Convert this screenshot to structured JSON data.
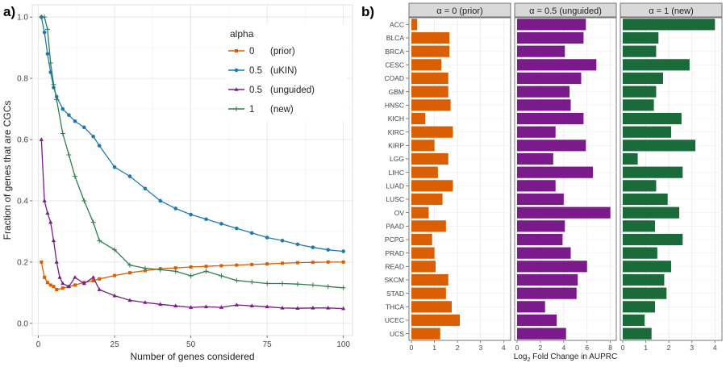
{
  "panels": {
    "a_label": "a)",
    "b_label": "b)"
  },
  "chart_data": [
    {
      "type": "line",
      "panel": "a",
      "xlabel": "Number of genes considered",
      "ylabel": "Fraction of genes that are CGCs",
      "xlim": [
        0,
        100
      ],
      "ylim": [
        0,
        1.0
      ],
      "xticks": [
        0,
        25,
        50,
        75,
        100
      ],
      "yticks": [
        0.0,
        0.2,
        0.4,
        0.6,
        0.8,
        1.0
      ],
      "yticklabels": [
        "0.0",
        "0.2",
        "0.4",
        "0.6",
        "0.8",
        "1.0"
      ],
      "grid": true,
      "legend_title": "alpha",
      "legend_position": "top-right",
      "series": [
        {
          "name": "0",
          "label": "(prior)",
          "color": "#D95F02",
          "marker": "square",
          "x": [
            1,
            2,
            3,
            4,
            5,
            6,
            8,
            10,
            12,
            15,
            18,
            20,
            25,
            30,
            35,
            40,
            45,
            50,
            55,
            60,
            65,
            70,
            75,
            80,
            85,
            90,
            95,
            100
          ],
          "values": [
            0.2,
            0.15,
            0.133,
            0.125,
            0.12,
            0.11,
            0.115,
            0.12,
            0.125,
            0.133,
            0.139,
            0.145,
            0.156,
            0.165,
            0.172,
            0.178,
            0.181,
            0.184,
            0.186,
            0.188,
            0.19,
            0.192,
            0.194,
            0.196,
            0.198,
            0.199,
            0.2,
            0.2
          ]
        },
        {
          "name": "0.5",
          "label": "(uKIN)",
          "color": "#1F78B4",
          "marker": "circle",
          "x": [
            1,
            2,
            3,
            4,
            5,
            6,
            8,
            10,
            12,
            15,
            18,
            20,
            25,
            30,
            35,
            40,
            45,
            50,
            55,
            60,
            65,
            70,
            75,
            80,
            85,
            90,
            95,
            100
          ],
          "values": [
            1.0,
            0.95,
            0.88,
            0.82,
            0.77,
            0.74,
            0.7,
            0.68,
            0.66,
            0.64,
            0.61,
            0.58,
            0.51,
            0.48,
            0.44,
            0.4,
            0.375,
            0.355,
            0.34,
            0.325,
            0.31,
            0.295,
            0.28,
            0.27,
            0.258,
            0.248,
            0.24,
            0.235
          ]
        },
        {
          "name": "0.5",
          "label": "(unguided)",
          "color": "#7B1A8A",
          "marker": "triangle",
          "x": [
            1,
            2,
            3,
            4,
            5,
            6,
            7,
            8,
            10,
            12,
            15,
            18,
            20,
            25,
            30,
            35,
            40,
            45,
            50,
            55,
            60,
            65,
            70,
            75,
            80,
            85,
            90,
            95,
            100
          ],
          "values": [
            0.6,
            0.4,
            0.36,
            0.33,
            0.27,
            0.2,
            0.15,
            0.13,
            0.12,
            0.15,
            0.13,
            0.15,
            0.11,
            0.09,
            0.075,
            0.068,
            0.062,
            0.057,
            0.052,
            0.054,
            0.052,
            0.06,
            0.057,
            0.054,
            0.05,
            0.049,
            0.05,
            0.05,
            0.048
          ]
        },
        {
          "name": "1",
          "label": "(new)",
          "color": "#2E7D4F",
          "marker": "plus",
          "x": [
            1,
            2,
            3,
            4,
            5,
            6,
            8,
            10,
            12,
            15,
            18,
            20,
            25,
            30,
            35,
            40,
            45,
            50,
            55,
            60,
            65,
            70,
            75,
            80,
            85,
            90,
            95,
            100
          ],
          "values": [
            1.0,
            1.0,
            0.96,
            0.85,
            0.78,
            0.73,
            0.62,
            0.55,
            0.48,
            0.4,
            0.33,
            0.27,
            0.24,
            0.19,
            0.18,
            0.175,
            0.17,
            0.155,
            0.17,
            0.155,
            0.14,
            0.135,
            0.13,
            0.13,
            0.128,
            0.125,
            0.12,
            0.116
          ]
        }
      ]
    },
    {
      "type": "bar",
      "orientation": "horizontal",
      "panel": "b",
      "xlabel_main": "Log",
      "xlabel_sub": "2",
      "xlabel_rest": " Fold Change in AUPRC",
      "categories": [
        "ACC",
        "BLCA",
        "BRCA",
        "CESC",
        "COAD",
        "GBM",
        "HNSC",
        "KICH",
        "KIRC",
        "KIRP",
        "LGG",
        "LIHC",
        "LUAD",
        "LUSC",
        "OV",
        "PAAD",
        "PCPG",
        "PRAD",
        "READ",
        "SKCM",
        "STAD",
        "THCA",
        "UCEC",
        "UCS"
      ],
      "grid": true,
      "facets": [
        {
          "title": "α = 0 (prior)",
          "color": "#D95F02",
          "xlim": [
            0,
            4.2
          ],
          "xticks": [
            0,
            1,
            2,
            3,
            4
          ],
          "values": [
            0.25,
            1.65,
            1.65,
            1.3,
            1.6,
            1.6,
            1.7,
            0.6,
            1.8,
            1.0,
            1.6,
            1.15,
            1.8,
            1.35,
            0.75,
            1.5,
            0.9,
            1.0,
            1.05,
            1.6,
            1.5,
            1.75,
            2.1,
            1.25
          ]
        },
        {
          "title": "α = 0.5 (unguided)",
          "color": "#7B1A8A",
          "xlim": [
            0,
            8.3
          ],
          "xticks": [
            0,
            2,
            4,
            6,
            8
          ],
          "values": [
            5.9,
            5.7,
            4.1,
            6.8,
            5.5,
            4.5,
            4.6,
            5.7,
            3.3,
            5.9,
            3.1,
            6.5,
            3.3,
            4.0,
            8.0,
            4.1,
            3.9,
            4.6,
            6.0,
            5.2,
            5.1,
            2.4,
            3.4,
            4.2
          ]
        },
        {
          "title": "α = 1 (new)",
          "color": "#1B6B3A",
          "xlim": [
            0,
            4.2
          ],
          "xticks": [
            0,
            1,
            2,
            3,
            4
          ],
          "values": [
            4.0,
            1.55,
            1.45,
            2.9,
            1.75,
            1.45,
            1.35,
            2.55,
            2.1,
            3.15,
            0.65,
            2.6,
            1.45,
            1.95,
            2.45,
            1.4,
            2.6,
            1.5,
            2.1,
            1.8,
            1.9,
            1.4,
            0.95,
            1.25
          ]
        }
      ]
    }
  ]
}
